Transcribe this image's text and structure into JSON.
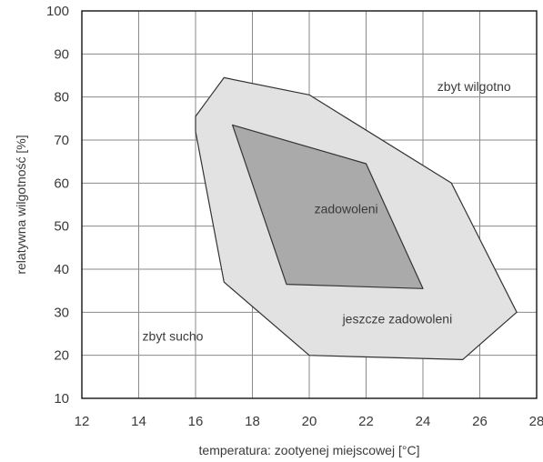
{
  "chart_data": {
    "type": "area",
    "title": "",
    "xlabel": "temperatura: zootyenej miejscowej [°C]",
    "ylabel": "relatywna wilgotność [%]",
    "xlim": [
      12,
      28
    ],
    "ylim": [
      10,
      100
    ],
    "x_ticks": [
      12,
      14,
      16,
      18,
      20,
      22,
      24,
      26,
      28
    ],
    "x_tick_labels": [
      "12",
      "14",
      "16",
      "18",
      "20",
      "22",
      "24",
      "26",
      "28"
    ],
    "y_ticks": [
      10,
      20,
      30,
      40,
      50,
      60,
      70,
      80,
      90,
      100
    ],
    "y_tick_labels": [
      "10",
      "20",
      "30",
      "40",
      "50",
      "60",
      "70",
      "80",
      "90",
      "100"
    ],
    "grid": true,
    "series": [
      {
        "name": "jeszcze zadowoleni",
        "color": "#e2e2e2",
        "points": [
          [
            16.0,
            75.5
          ],
          [
            16.5,
            80.0
          ],
          [
            17.0,
            84.5
          ],
          [
            20.0,
            80.5
          ],
          [
            25.0,
            60.0
          ],
          [
            27.3,
            30.0
          ],
          [
            25.4,
            19.0
          ],
          [
            20.0,
            20.0
          ],
          [
            17.0,
            37.0
          ],
          [
            16.0,
            72.0
          ]
        ]
      },
      {
        "name": "zadowoleni",
        "color": "#aaaaaa",
        "points": [
          [
            17.3,
            73.5
          ],
          [
            22.0,
            64.5
          ],
          [
            24.0,
            35.5
          ],
          [
            19.2,
            36.5
          ]
        ]
      }
    ],
    "annotations": [
      {
        "text": "zbyt wilgotno",
        "x": 25.8,
        "y": 82.5
      },
      {
        "text": "zadowoleni",
        "x": 21.3,
        "y": 54.0
      },
      {
        "text": "jeszcze zadowoleni",
        "x": 23.1,
        "y": 28.5
      },
      {
        "text": "zbyt sucho",
        "x": 15.2,
        "y": 24.5
      }
    ]
  }
}
